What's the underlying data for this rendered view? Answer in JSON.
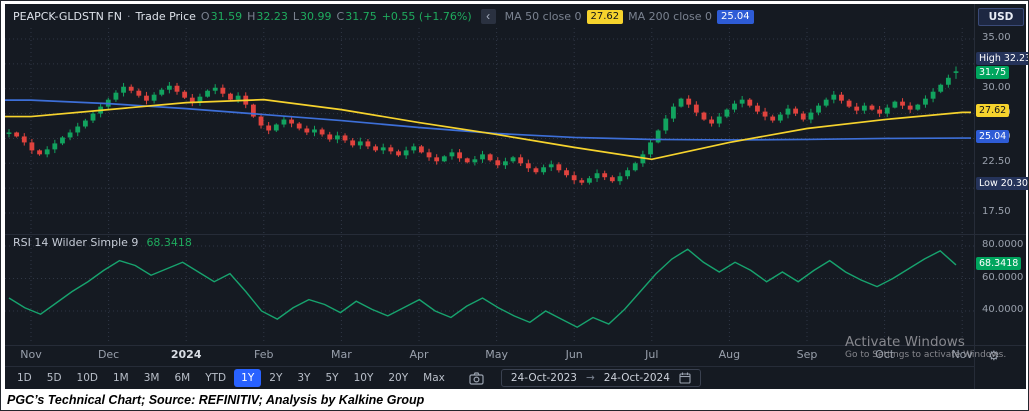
{
  "colors": {
    "bg": "#151a22",
    "grid": "#303746",
    "green": "#1fab5e",
    "candle_green": "#12a35f",
    "candle_red": "#e0433e",
    "ma50": "#f6d32d",
    "ma200": "#3d6fd8",
    "rsi": "#17a36e",
    "accent": "#2962ff",
    "badge_navy": "#25335a",
    "badge_green": "#00a55e",
    "badge_blue": "#2e5cd6"
  },
  "header": {
    "symbol": "PEAPCK-GLDSTN FN",
    "dot": "·",
    "series": "Trade Price",
    "o_label": "O",
    "o": "31.59",
    "h_label": "H",
    "h": "32.23",
    "l_label": "L",
    "l": "30.99",
    "c_label": "C",
    "c": "31.75",
    "change": "+0.55 (+1.76%)",
    "collapse_glyph": "‹",
    "ma50_label": "MA 50 close 0",
    "ma50_value": "27.62",
    "ma200_label": "MA 200 close 0",
    "ma200_value": "25.04"
  },
  "price_axis": {
    "currency": "USD",
    "ticks": [
      "35.00",
      "32.50",
      "30.00",
      "27.50",
      "25.00",
      "22.50",
      "20.00",
      "17.50"
    ],
    "high_label": "High",
    "high_value": "32.23",
    "close_value": "31.75",
    "ma50_value": "27.62",
    "ma200_value": "25.04",
    "low_label": "Low",
    "low_value": "20.30"
  },
  "rsi": {
    "label": "RSI 14 Wilder Simple 9",
    "value": "68.3418",
    "ticks": [
      "80.0000",
      "60.0000",
      "40.0000"
    ]
  },
  "x_axis": {
    "labels": [
      "Nov",
      "Dec",
      "2024",
      "Feb",
      "Mar",
      "Apr",
      "May",
      "Jun",
      "Jul",
      "Aug",
      "Sep",
      "Oct",
      "Nov"
    ]
  },
  "toolbar": {
    "ranges": [
      "1D",
      "5D",
      "10D",
      "1M",
      "3M",
      "6M",
      "YTD",
      "1Y",
      "2Y",
      "3Y",
      "5Y",
      "10Y",
      "20Y",
      "Max"
    ],
    "active_range": "1Y",
    "date_from": "24-Oct-2023",
    "date_arrow": "→",
    "date_to": "24-Oct-2024",
    "gear_glyph": "⚙"
  },
  "watermark": {
    "line1": "Activate Windows",
    "line2": "Go to Settings to activate Windows."
  },
  "caption": "PGC’s Technical Chart; Source: REFINITIV; Analysis by Kalkine Group",
  "chart_data": {
    "type": "candlestick",
    "title": "PEAPCK-GLDSTN FN Trade Price",
    "x_range": [
      "24-Oct-2023",
      "24-Oct-2024"
    ],
    "x_months": [
      "Nov",
      "Dec",
      "2024",
      "Feb",
      "Mar",
      "Apr",
      "May",
      "Jun",
      "Jul",
      "Aug",
      "Sep",
      "Oct",
      "Nov"
    ],
    "price_pane": {
      "ylim": [
        16.0,
        36.2
      ],
      "tick_values": [
        35,
        32.5,
        30,
        27.5,
        25,
        22.5,
        20,
        17.5
      ],
      "last_ohlc": {
        "open": 31.59,
        "high": 32.23,
        "low": 30.99,
        "close": 31.75
      },
      "period_high": 32.23,
      "period_low": 20.3,
      "closes": [
        25.6,
        25.2,
        24.6,
        23.8,
        23.4,
        23.9,
        24.5,
        25.1,
        25.6,
        26.2,
        26.8,
        27.5,
        28.2,
        28.9,
        29.6,
        30.2,
        29.8,
        29.3,
        28.8,
        29.4,
        29.9,
        30.3,
        29.7,
        29.1,
        28.6,
        29.2,
        29.8,
        30.1,
        29.5,
        28.9,
        29.3,
        28.4,
        27.2,
        26.3,
        25.8,
        26.4,
        26.9,
        26.5,
        26.0,
        25.6,
        25.9,
        25.4,
        24.9,
        25.3,
        24.8,
        24.3,
        24.7,
        24.2,
        23.8,
        24.1,
        23.7,
        23.3,
        23.8,
        24.2,
        23.6,
        23.1,
        22.7,
        23.2,
        23.6,
        23.0,
        22.6,
        22.9,
        23.4,
        22.8,
        22.3,
        22.7,
        23.1,
        22.5,
        22.0,
        21.6,
        22.1,
        22.4,
        21.8,
        21.3,
        20.8,
        20.55,
        21.0,
        21.5,
        21.1,
        20.7,
        21.2,
        21.8,
        22.5,
        23.4,
        24.6,
        25.8,
        27.0,
        28.2,
        29.0,
        28.4,
        27.6,
        26.9,
        26.5,
        27.2,
        27.9,
        28.5,
        28.9,
        28.3,
        27.7,
        27.2,
        26.8,
        27.4,
        28.0,
        27.5,
        26.9,
        27.6,
        28.3,
        28.9,
        29.4,
        28.8,
        28.2,
        27.8,
        28.3,
        27.9,
        27.5,
        28.1,
        28.7,
        28.3,
        27.9,
        28.4,
        29.0,
        29.7,
        30.4,
        31.1,
        31.75
      ],
      "ma50": {
        "name": "MA 50 close 0",
        "last": 27.62,
        "month_points": [
          27.2,
          27.9,
          28.6,
          28.9,
          27.9,
          26.6,
          25.4,
          24.1,
          22.9,
          24.6,
          26.0,
          26.9,
          27.62
        ]
      },
      "ma200": {
        "name": "MA 200 close 0",
        "last": 25.04,
        "month_points": [
          28.85,
          28.5,
          28.0,
          27.4,
          26.8,
          26.1,
          25.5,
          25.1,
          24.9,
          24.85,
          24.9,
          25.0,
          25.04
        ]
      }
    },
    "rsi_pane": {
      "name": "RSI 14 Wilder Simple 9",
      "last": 68.3418,
      "ylim": [
        23,
        92
      ],
      "tick_values": [
        80,
        60,
        40
      ],
      "values": [
        48,
        42,
        38,
        45,
        52,
        58,
        65,
        71,
        68,
        62,
        66,
        70,
        64,
        58,
        63,
        52,
        40,
        35,
        42,
        47,
        44,
        39,
        46,
        41,
        37,
        42,
        47,
        40,
        36,
        43,
        48,
        42,
        37,
        33,
        40,
        35,
        30,
        36,
        32,
        41,
        52,
        63,
        72,
        78,
        70,
        64,
        70,
        65,
        58,
        64,
        58,
        65,
        71,
        64,
        59,
        55,
        60,
        66,
        72,
        77,
        68.34
      ]
    }
  }
}
